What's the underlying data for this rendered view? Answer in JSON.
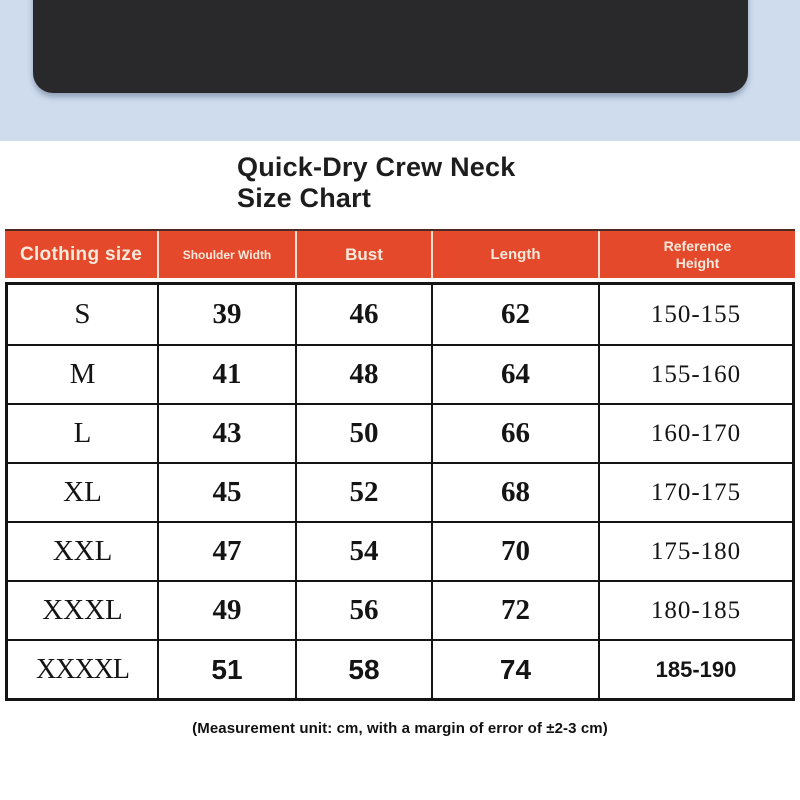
{
  "hero": {
    "band_color": "#cedcee",
    "product_photo_color": "#29292b"
  },
  "title": {
    "line1": "Quick-Dry Crew Neck",
    "line2": "Size Chart"
  },
  "table": {
    "header_bg": "#e5492b",
    "header_text_color": "#f7e9dc",
    "border_color": "#141414",
    "columns": [
      "Clothing size",
      "Shoulder Width",
      "Bust",
      "Length",
      "Reference Height"
    ],
    "rows": [
      {
        "size": "S",
        "shoulder": "39",
        "bust": "46",
        "length": "62",
        "height": "150-155"
      },
      {
        "size": "M",
        "shoulder": "41",
        "bust": "48",
        "length": "64",
        "height": "155-160"
      },
      {
        "size": "L",
        "shoulder": "43",
        "bust": "50",
        "length": "66",
        "height": "160-170"
      },
      {
        "size": "XL",
        "shoulder": "45",
        "bust": "52",
        "length": "68",
        "height": "170-175"
      },
      {
        "size": "XXL",
        "shoulder": "47",
        "bust": "54",
        "length": "70",
        "height": "175-180"
      },
      {
        "size": "XXXL",
        "shoulder": "49",
        "bust": "56",
        "length": "72",
        "height": "180-185"
      },
      {
        "size": "XXXXL",
        "shoulder": "51",
        "bust": "58",
        "length": "74",
        "height": "185-190"
      }
    ]
  },
  "footer": {
    "note": "(Measurement unit: cm, with a margin of error of ±2-3 cm)"
  }
}
